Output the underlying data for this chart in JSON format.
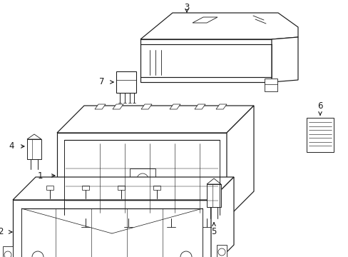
{
  "background": "#ffffff",
  "line_color": "#1a1a1a",
  "figsize": [
    4.89,
    3.6
  ],
  "dpi": 100,
  "lw": 0.85
}
